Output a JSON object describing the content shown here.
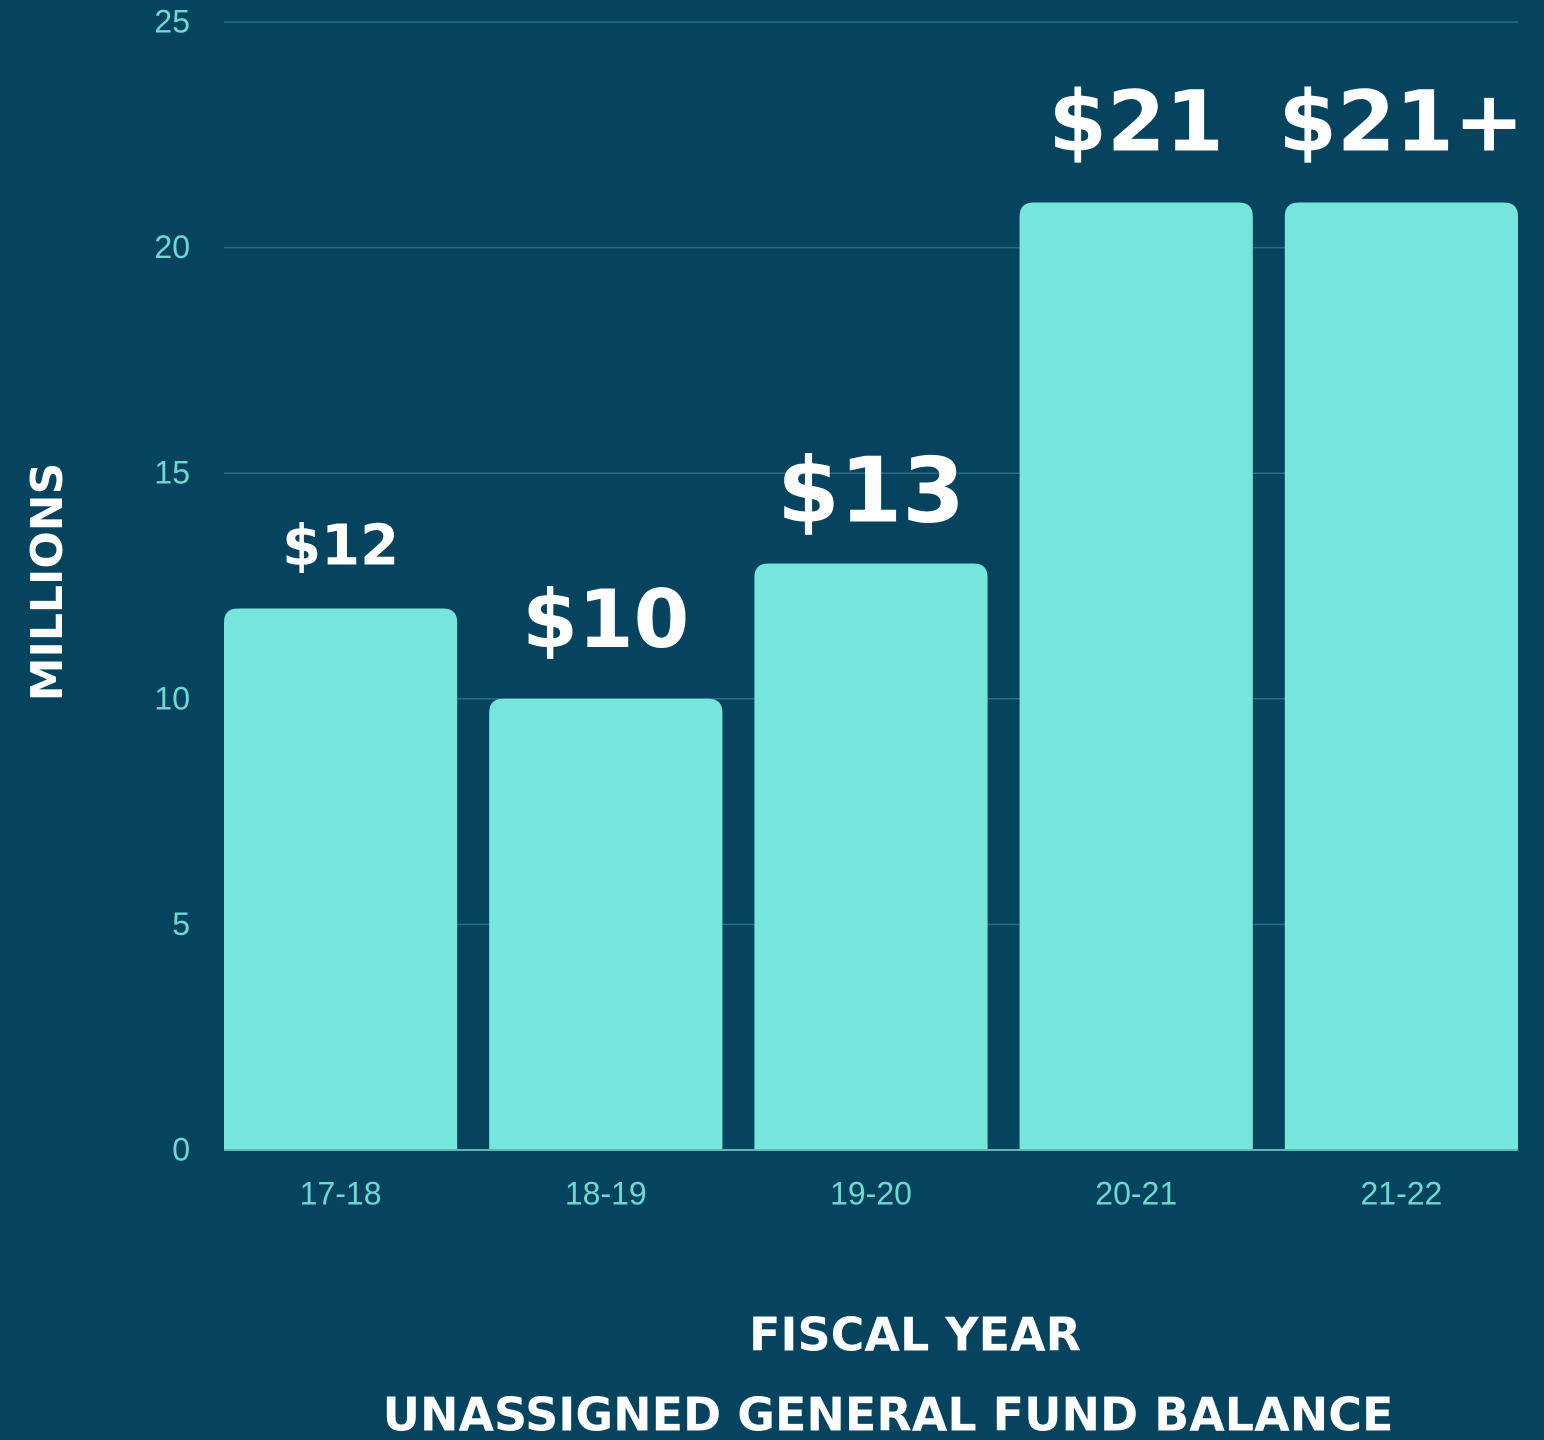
{
  "chart_data": {
    "type": "bar",
    "title": "UNASSIGNED GENERAL FUND BALANCE",
    "x_label": "FISCAL YEAR",
    "y_label": "MILLIONS",
    "categories": [
      "17-18",
      "18-19",
      "19-20",
      "20-21",
      "21-22"
    ],
    "values": [
      12,
      10,
      13,
      21,
      21
    ],
    "value_labels": [
      "$12",
      "$10",
      "$13",
      "$21",
      "$21+"
    ],
    "color": "#76e6dc",
    "ylim": [
      0,
      25
    ],
    "yticks": [
      0,
      5,
      10,
      15,
      20,
      25
    ],
    "grid": true
  }
}
